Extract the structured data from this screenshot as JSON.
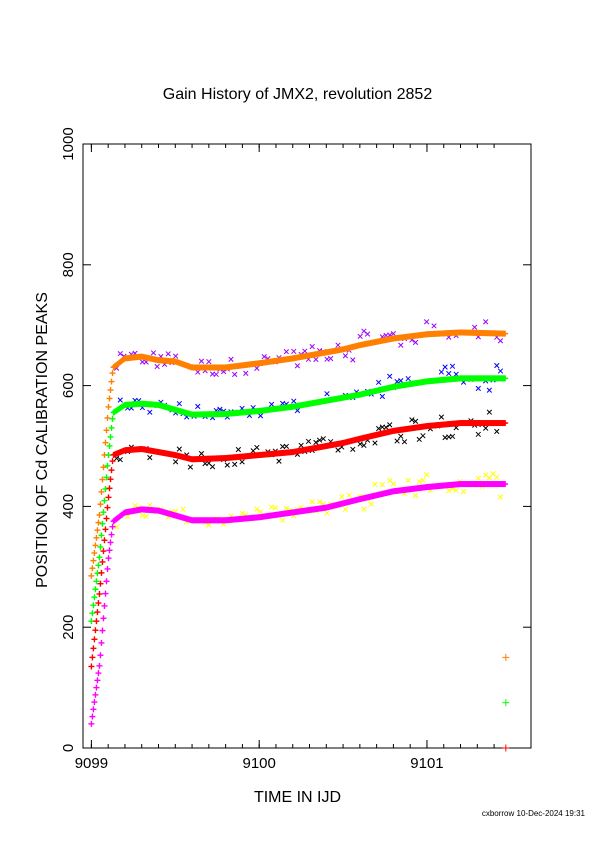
{
  "title": "Gain History of JMX2, revolution 2852",
  "xlabel": "TIME IN IJD",
  "ylabel": "POSITION OF Cd CALIBRATION PEAKS",
  "footer": "cxborrow 10-Dec-2024 19:31",
  "chart_data": {
    "type": "scatter",
    "title": "Gain History of JMX2, revolution 2852",
    "xlabel": "TIME IN IJD",
    "ylabel": "POSITION OF Cd CALIBRATION PEAKS",
    "xlim": [
      9098.95,
      9101.62
    ],
    "ylim": [
      0,
      1000
    ],
    "xticks": [
      9099,
      9100,
      9101
    ],
    "yticks": [
      0,
      200,
      400,
      600,
      800,
      1000
    ],
    "grid": false,
    "legend": "none",
    "smoothed": [
      {
        "color": "#ff8000",
        "points": [
          [
            9099.0,
            285
          ],
          [
            9099.05,
            390
          ],
          [
            9099.1,
            560
          ],
          [
            9099.13,
            630
          ],
          [
            9099.2,
            645
          ],
          [
            9099.3,
            648
          ],
          [
            9099.4,
            642
          ],
          [
            9099.5,
            640
          ],
          [
            9099.6,
            630
          ],
          [
            9099.8,
            630
          ],
          [
            9100.0,
            637
          ],
          [
            9100.2,
            645
          ],
          [
            9100.4,
            655
          ],
          [
            9100.5,
            660
          ],
          [
            9100.6,
            667
          ],
          [
            9100.8,
            678
          ],
          [
            9101.0,
            685
          ],
          [
            9101.2,
            688
          ],
          [
            9101.47,
            686
          ]
        ]
      },
      {
        "color": "#00ff00",
        "points": [
          [
            9099.0,
            210
          ],
          [
            9099.05,
            320
          ],
          [
            9099.1,
            480
          ],
          [
            9099.13,
            555
          ],
          [
            9099.2,
            568
          ],
          [
            9099.3,
            570
          ],
          [
            9099.4,
            568
          ],
          [
            9099.5,
            560
          ],
          [
            9099.6,
            552
          ],
          [
            9099.8,
            553
          ],
          [
            9100.0,
            558
          ],
          [
            9100.2,
            565
          ],
          [
            9100.4,
            575
          ],
          [
            9100.6,
            585
          ],
          [
            9100.8,
            598
          ],
          [
            9101.0,
            607
          ],
          [
            9101.2,
            612
          ],
          [
            9101.47,
            612
          ]
        ]
      },
      {
        "color": "#ff0000",
        "points": [
          [
            9099.0,
            135
          ],
          [
            9099.05,
            260
          ],
          [
            9099.1,
            410
          ],
          [
            9099.13,
            485
          ],
          [
            9099.2,
            493
          ],
          [
            9099.3,
            495
          ],
          [
            9099.4,
            490
          ],
          [
            9099.5,
            485
          ],
          [
            9099.6,
            478
          ],
          [
            9099.8,
            480
          ],
          [
            9100.0,
            485
          ],
          [
            9100.2,
            490
          ],
          [
            9100.4,
            500
          ],
          [
            9100.5,
            505
          ],
          [
            9100.6,
            512
          ],
          [
            9100.8,
            525
          ],
          [
            9101.0,
            533
          ],
          [
            9101.2,
            538
          ],
          [
            9101.47,
            538
          ]
        ]
      },
      {
        "color": "#ff00ff",
        "points": [
          [
            9099.0,
            40
          ],
          [
            9099.05,
            140
          ],
          [
            9099.1,
            310
          ],
          [
            9099.13,
            375
          ],
          [
            9099.2,
            390
          ],
          [
            9099.3,
            395
          ],
          [
            9099.4,
            393
          ],
          [
            9099.5,
            385
          ],
          [
            9099.6,
            377
          ],
          [
            9099.8,
            377
          ],
          [
            9100.0,
            382
          ],
          [
            9100.2,
            390
          ],
          [
            9100.4,
            398
          ],
          [
            9100.5,
            405
          ],
          [
            9100.6,
            412
          ],
          [
            9100.8,
            425
          ],
          [
            9101.0,
            432
          ],
          [
            9101.2,
            437
          ],
          [
            9101.47,
            437
          ]
        ]
      }
    ],
    "raw": [
      {
        "color": "#9900ff",
        "offset": 0,
        "base": "#ff8000"
      },
      {
        "color": "#0000ff",
        "offset": 0,
        "base": "#00ff00"
      },
      {
        "color": "#000000",
        "offset": 0,
        "base": "#ff0000"
      },
      {
        "color": "#ffff00",
        "offset": 0,
        "base": "#ff00ff"
      }
    ],
    "markers": [
      {
        "color": "#ff8000",
        "x": 9101.47,
        "y": 150
      },
      {
        "color": "#00ff00",
        "x": 9101.47,
        "y": 75
      },
      {
        "color": "#ff0000",
        "x": 9101.47,
        "y": 0
      }
    ]
  }
}
